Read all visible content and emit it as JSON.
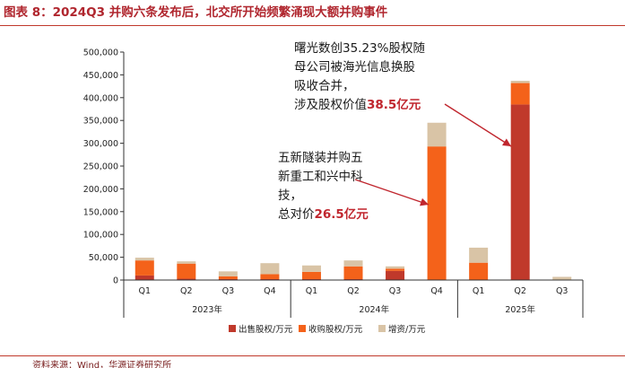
{
  "title": "图表 8：2024Q3 并购六条发布后，北交所开始频繁涌现大额并购事件",
  "source": "资料来源：Wind，华源证券研究所",
  "colors": {
    "sell": "#c0392b",
    "acquire": "#f4621a",
    "increase": "#d9c4a6",
    "arrow": "#c0262e",
    "title": "#b0262e"
  },
  "chart_data": {
    "type": "bar",
    "stacked": true,
    "categories": [
      "Q1",
      "Q2",
      "Q3",
      "Q4",
      "Q1",
      "Q2",
      "Q3",
      "Q4",
      "Q1",
      "Q2",
      "Q3"
    ],
    "groups": [
      {
        "label": "2023年",
        "span": 4
      },
      {
        "label": "2024年",
        "span": 4
      },
      {
        "label": "2025年",
        "span": 3
      }
    ],
    "series": [
      {
        "name": "出售股权/万元",
        "color": "#c0392b",
        "values": [
          10000,
          3000,
          2000,
          2000,
          2000,
          2000,
          20000,
          0,
          0,
          385000,
          0
        ]
      },
      {
        "name": "收购股权/万元",
        "color": "#f4621a",
        "values": [
          33000,
          33000,
          6000,
          11000,
          16000,
          28000,
          5000,
          293000,
          38000,
          47000,
          0
        ]
      },
      {
        "name": "增资/万元",
        "color": "#d9c4a6",
        "values": [
          6000,
          5000,
          11000,
          24000,
          14000,
          13000,
          5000,
          52000,
          33000,
          5000,
          7000
        ]
      }
    ],
    "ylim": [
      0,
      500000
    ],
    "yticks": [
      "0",
      "50,000",
      "100,000",
      "150,000",
      "200,000",
      "250,000",
      "300,000",
      "350,000",
      "400,000",
      "450,000",
      "500,000"
    ],
    "legend_position": "bottom",
    "grid": false,
    "annotations": [
      {
        "lines": [
          [
            {
              "t": "曙光数创35.23%股权随",
              "red": false
            }
          ],
          [
            {
              "t": "母公司被海光信息换股",
              "red": false
            }
          ],
          [
            {
              "t": "吸收合并，",
              "red": false
            }
          ],
          [
            {
              "t": "涉及股权价值",
              "red": false
            },
            {
              "t": "38.5亿元",
              "red": true
            }
          ]
        ],
        "target_index": 9
      },
      {
        "lines": [
          [
            {
              "t": "五新隧装并购五",
              "red": false
            }
          ],
          [
            {
              "t": "新重工和兴中科",
              "red": false
            }
          ],
          [
            {
              "t": "技，",
              "red": false
            }
          ],
          [
            {
              "t": "总对价",
              "red": false
            },
            {
              "t": "26.5亿元",
              "red": true
            }
          ]
        ],
        "target_index": 7
      }
    ]
  }
}
